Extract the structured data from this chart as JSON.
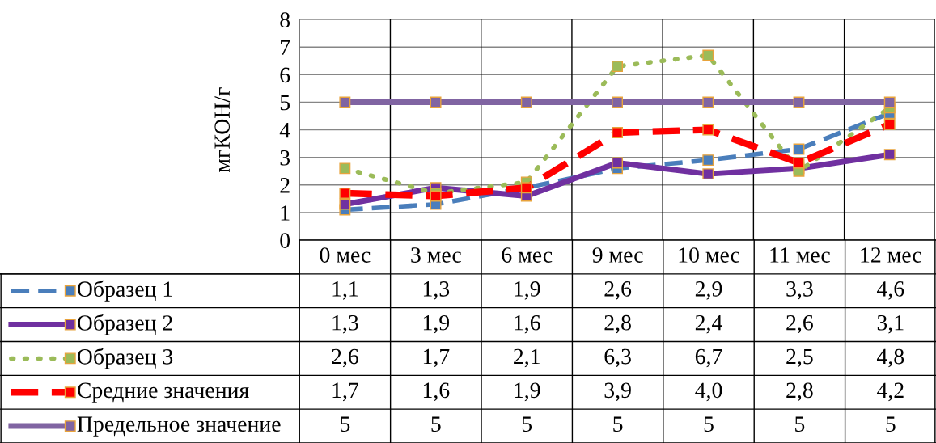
{
  "chart_data": {
    "type": "line",
    "ylabel": "мгКОН/г",
    "categories": [
      "0 мес",
      "3 мес",
      "6 мес",
      "9 мес",
      "10 мес",
      "11 мес",
      "12 мес"
    ],
    "ylim": [
      0,
      8
    ],
    "yticks": [
      0,
      1,
      2,
      3,
      4,
      5,
      6,
      7,
      8
    ],
    "grid": true,
    "legend": "bottom",
    "marker": "square",
    "series": [
      {
        "name": "Образец 1",
        "color": "#4a7ebb",
        "line_style": "dashed",
        "values": [
          1.1,
          1.3,
          1.9,
          2.6,
          2.9,
          3.3,
          4.6
        ],
        "value_labels": [
          "1,1",
          "1,3",
          "1,9",
          "2,6",
          "2,9",
          "3,3",
          "4,6"
        ]
      },
      {
        "name": "Образец 2",
        "color": "#7030a0",
        "line_style": "solid",
        "values": [
          1.3,
          1.9,
          1.6,
          2.8,
          2.4,
          2.6,
          3.1
        ],
        "value_labels": [
          "1,3",
          "1,9",
          "1,6",
          "2,8",
          "2,4",
          "2,6",
          "3,1"
        ]
      },
      {
        "name": "Образец 3",
        "color": "#9bbb59",
        "line_style": "dotted",
        "values": [
          2.6,
          1.7,
          2.1,
          6.3,
          6.7,
          2.5,
          4.8
        ],
        "value_labels": [
          "2,6",
          "1,7",
          "2,1",
          "6,3",
          "6,7",
          "2,5",
          "4,8"
        ]
      },
      {
        "name": "Средние значения",
        "color": "#ff0000",
        "line_style": "dashed",
        "values": [
          1.7,
          1.6,
          1.9,
          3.9,
          4.0,
          2.8,
          4.2
        ],
        "value_labels": [
          "1,7",
          "1,6",
          "1,9",
          "3,9",
          "4,0",
          "2,8",
          "4,2"
        ]
      },
      {
        "name": "Предельное значение",
        "color": "#8064a2",
        "line_style": "solid",
        "values": [
          5,
          5,
          5,
          5,
          5,
          5,
          5
        ],
        "value_labels": [
          "5",
          "5",
          "5",
          "5",
          "5",
          "5",
          "5"
        ]
      }
    ]
  }
}
